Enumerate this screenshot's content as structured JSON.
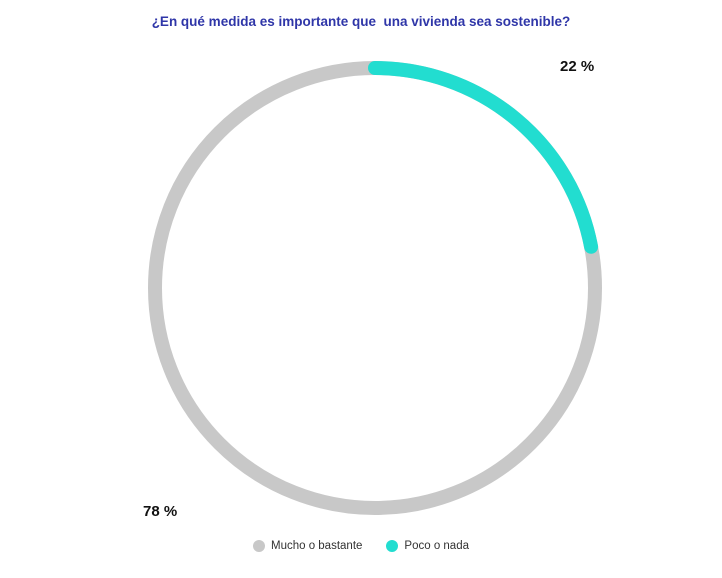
{
  "chart_data": {
    "type": "pie",
    "title": "¿En qué medida es importante que  una vivienda sea sostenible?",
    "categories": [
      "Mucho o bastante",
      "Poco o nada"
    ],
    "values": [
      78,
      22
    ],
    "value_labels": [
      "78 %",
      "22 %"
    ],
    "colors": [
      "#c8c8c8",
      "#22ddd0"
    ],
    "legend_position": "bottom"
  }
}
